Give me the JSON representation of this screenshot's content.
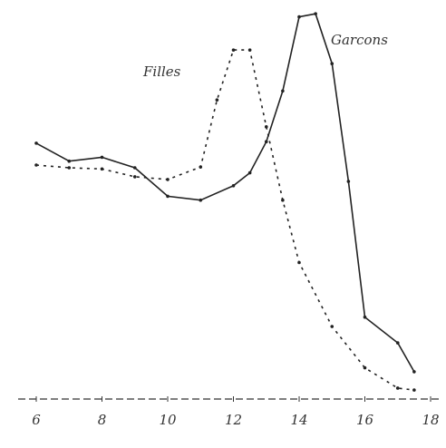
{
  "chart_data": {
    "type": "line",
    "x": [],
    "series": [
      {
        "name": "Filles",
        "color": "#222222",
        "dash": "3,5",
        "x": [
          6,
          7,
          8,
          9,
          10,
          11,
          11.5,
          12,
          12.5,
          13,
          13.5,
          14,
          15,
          16,
          17,
          17.5
        ],
        "values": [
          60,
          59.3,
          59,
          57,
          56.3,
          59.5,
          76.7,
          89.5,
          89.5,
          69.8,
          51,
          35,
          18.6,
          8,
          2.8,
          2.3
        ]
      },
      {
        "name": "Garcons",
        "color": "#222222",
        "dash": "none",
        "x": [
          6,
          7,
          8,
          9,
          10,
          11,
          12,
          12.5,
          13,
          13.5,
          14,
          14.5,
          15,
          15.5,
          16,
          17,
          17.5
        ],
        "values": [
          65.6,
          61,
          62,
          59.3,
          52,
          51,
          54.7,
          58,
          66,
          79,
          98,
          98.8,
          86,
          55.8,
          21,
          14.4,
          7
        ]
      }
    ],
    "xlim": [
      6,
      18
    ],
    "xticks": [
      6,
      8,
      10,
      12,
      14,
      16,
      18
    ],
    "ylim": [
      0,
      100
    ],
    "grid": false
  }
}
